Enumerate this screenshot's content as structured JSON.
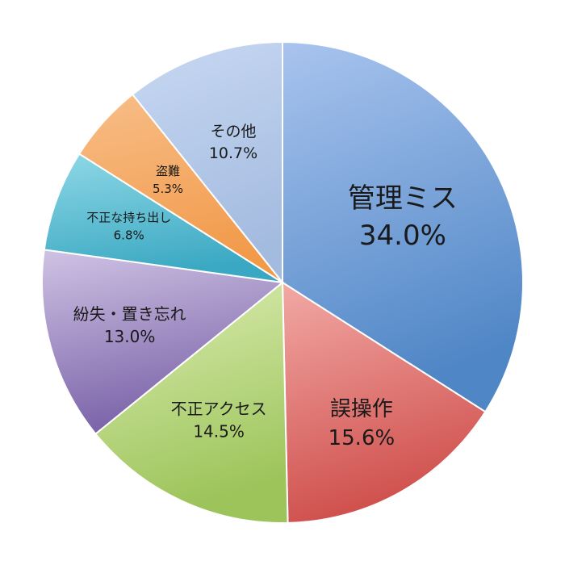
{
  "chart_data": {
    "type": "pie",
    "title": "",
    "start_angle_deg": 0,
    "direction": "clockwise",
    "slices": [
      {
        "label": "管理ミス",
        "value": 34.0,
        "value_label": "34.0%",
        "color_light": "#a9c4ee",
        "color_dark": "#4f86c6"
      },
      {
        "label": "誤操作",
        "value": 15.6,
        "value_label": "15.6%",
        "color_light": "#f2a9a5",
        "color_dark": "#cf4f4c"
      },
      {
        "label": "不正アクセス",
        "value": 14.5,
        "value_label": "14.5%",
        "color_light": "#dcedb3",
        "color_dark": "#9cc45a"
      },
      {
        "label": "紛失・置き忘れ",
        "value": 13.0,
        "value_label": "13.0%",
        "color_light": "#cfc3e4",
        "color_dark": "#7a62a8"
      },
      {
        "label": "不正な持ち出し",
        "value": 6.8,
        "value_label": "6.8%",
        "color_light": "#8fd8e6",
        "color_dark": "#3aa8c2"
      },
      {
        "label": "盗難",
        "value": 5.3,
        "value_label": "5.3%",
        "color_light": "#f7be88",
        "color_dark": "#f29a4a"
      },
      {
        "label": "その他",
        "value": 10.7,
        "value_label": "10.7%",
        "color_light": "#c7d8f2",
        "color_dark": "#a4bbe0"
      }
    ]
  }
}
